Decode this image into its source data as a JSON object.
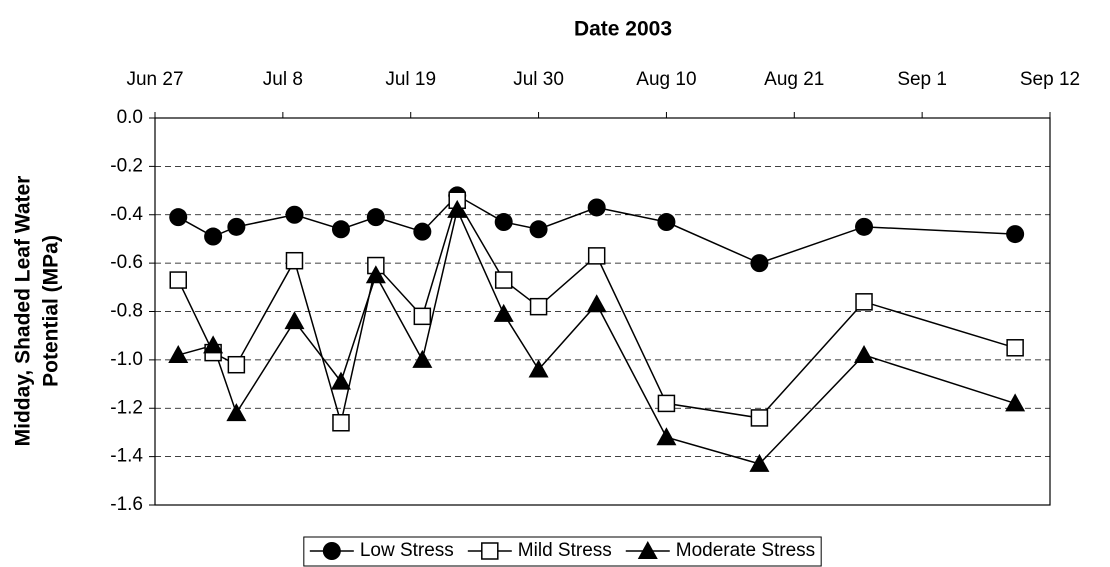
{
  "chart_data": {
    "type": "line",
    "xlabel": "Date 2003",
    "ylabel": [
      "Midday, Shaded Leaf Water",
      "Potential (MPa)"
    ],
    "x": [
      "2003-06-29",
      "2003-07-02",
      "2003-07-04",
      "2003-07-09",
      "2003-07-13",
      "2003-07-16",
      "2003-07-20",
      "2003-07-23",
      "2003-07-27",
      "2003-07-30",
      "2003-08-04",
      "2003-08-10",
      "2003-08-18",
      "2003-08-27",
      "2003-09-09"
    ],
    "series": [
      {
        "name": "Low Stress",
        "color": "#000000",
        "marker": "circle",
        "values": [
          -0.41,
          -0.49,
          -0.45,
          -0.4,
          -0.46,
          -0.41,
          -0.47,
          -0.32,
          -0.43,
          -0.46,
          -0.37,
          -0.43,
          -0.6,
          -0.45,
          -0.48
        ]
      },
      {
        "name": "Mild Stress",
        "color": "#000000",
        "marker": "square",
        "values": [
          -0.67,
          -0.97,
          -1.02,
          -0.59,
          -1.26,
          -0.61,
          -0.82,
          -0.34,
          -0.67,
          -0.78,
          -0.57,
          -1.18,
          -1.24,
          -0.76,
          -0.95
        ]
      },
      {
        "name": "Moderate Stress",
        "color": "#000000",
        "marker": "triangle",
        "values": [
          -0.98,
          -0.94,
          -1.22,
          -0.84,
          -1.09,
          -0.65,
          -1.0,
          -0.38,
          -0.81,
          -1.04,
          -0.77,
          -1.32,
          -1.43,
          -0.98,
          -1.18
        ]
      }
    ],
    "xlim": [
      "2003-06-27",
      "2003-09-12"
    ],
    "xticks": [
      {
        "value": "2003-06-27",
        "label": "Jun 27"
      },
      {
        "value": "2003-07-08",
        "label": "Jul 8"
      },
      {
        "value": "2003-07-19",
        "label": "Jul 19"
      },
      {
        "value": "2003-07-30",
        "label": "Jul 30"
      },
      {
        "value": "2003-08-10",
        "label": "Aug 10"
      },
      {
        "value": "2003-08-21",
        "label": "Aug 21"
      },
      {
        "value": "2003-09-01",
        "label": "Sep 1"
      },
      {
        "value": "2003-09-12",
        "label": "Sep 12"
      }
    ],
    "ylim": [
      -1.6,
      0
    ],
    "yticks": [
      -1.6,
      -1.4,
      -1.2,
      {
        "value": -1.0,
        "label": "-1.0"
      },
      -0.8,
      -0.6,
      -0.4,
      -0.2,
      {
        "value": 0,
        "label": "0.0"
      }
    ],
    "grid": true,
    "legend": "bottom"
  }
}
